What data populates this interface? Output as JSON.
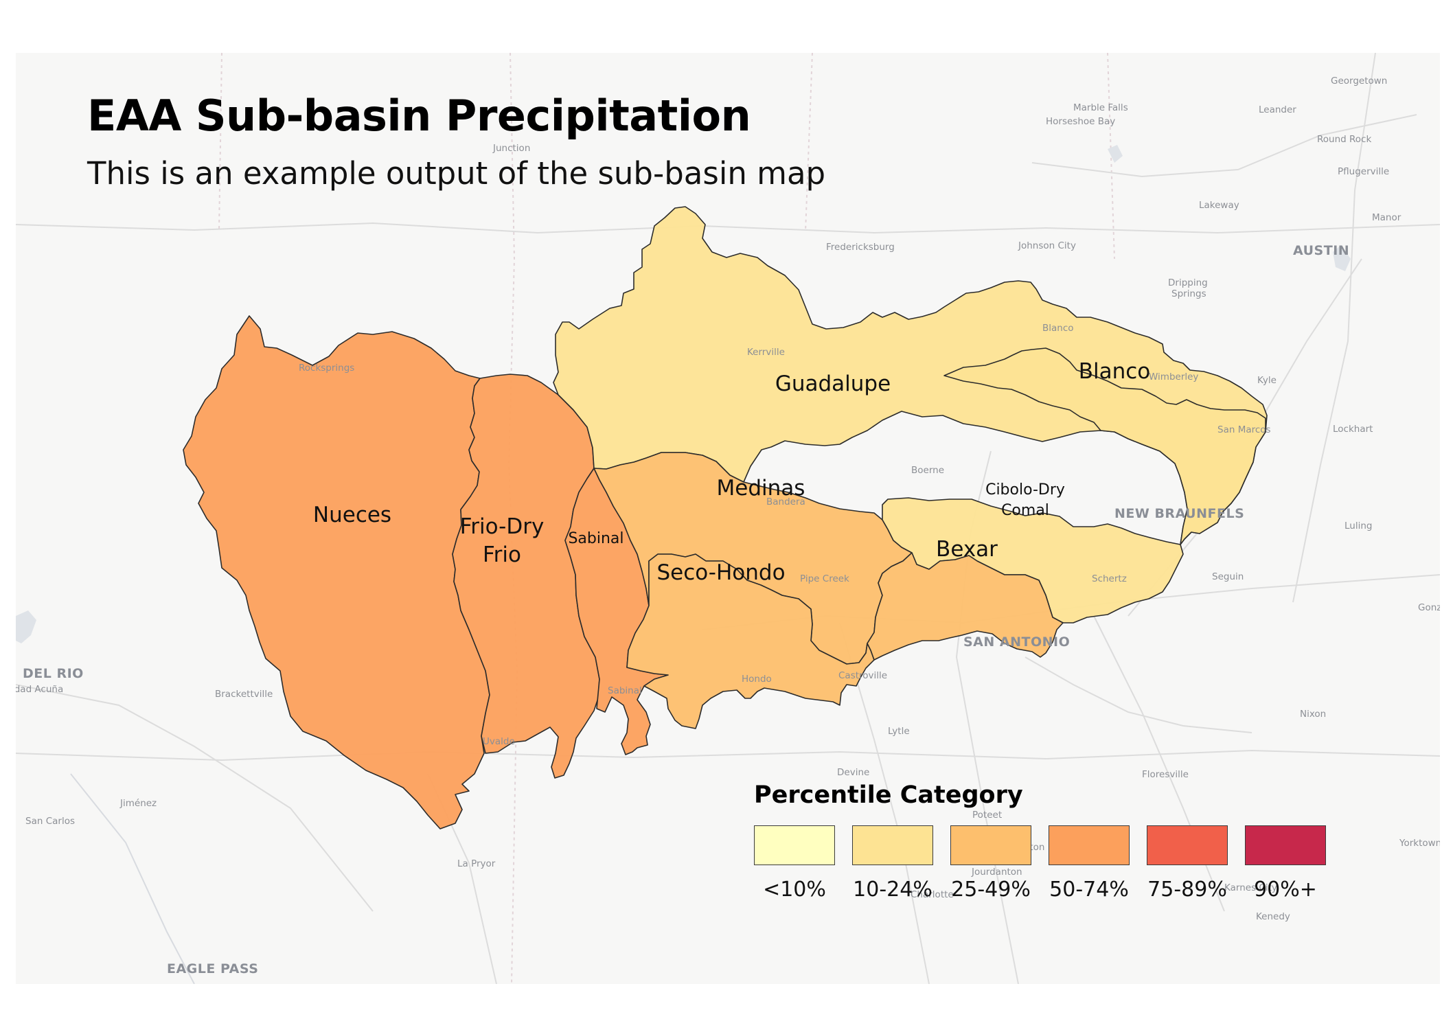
{
  "title": "EAA Sub-basin Precipitation",
  "subtitle": "This is an example output of the sub-basin map",
  "colors": {
    "lt10": "#ffffc0",
    "p10_24": "#fde393",
    "p25_49": "#fdbf6d",
    "p50_74": "#fca05c",
    "p75_89": "#f1604a",
    "p90": "#c7284b"
  },
  "legend": {
    "title": "Percentile Category",
    "items": [
      {
        "label": "<10%",
        "color": "#ffffc0"
      },
      {
        "label": "10-24%",
        "color": "#fde393"
      },
      {
        "label": "25-49%",
        "color": "#fdbf6d"
      },
      {
        "label": "50-74%",
        "color": "#fca05c"
      },
      {
        "label": "75-89%",
        "color": "#f1604a"
      },
      {
        "label": "90%+",
        "color": "#c7284b"
      }
    ]
  },
  "basins": {
    "nueces": {
      "name": "Nueces",
      "category": "50-74%"
    },
    "frio": {
      "line1": "Frio-Dry",
      "line2": "Frio",
      "category": "50-74%"
    },
    "sabinal": {
      "name": "Sabinal",
      "category": "50-74%"
    },
    "guadalupe": {
      "name": "Guadalupe",
      "category": "10-24%"
    },
    "blanco": {
      "name": "Blanco",
      "category": "10-24%"
    },
    "medinas": {
      "name": "Medinas",
      "category": "25-49%"
    },
    "seco": {
      "name": "Seco-Hondo",
      "category": "25-49%"
    },
    "cibolo": {
      "line1": "Cibolo-Dry",
      "line2": "Comal",
      "category": "10-24%"
    },
    "bexar": {
      "name": "Bexar",
      "category": "25-49%"
    }
  },
  "places": {
    "georgetown": "Georgetown",
    "marble_falls": "Marble Falls",
    "leander": "Leander",
    "horseshoe_bay": "Horseshoe Bay",
    "round_rock": "Round Rock",
    "junction": "Junction",
    "pflugerville": "Pflugerville",
    "lakeway": "Lakeway",
    "manor": "Manor",
    "fredericksburg": "Fredericksburg",
    "johnson_city": "Johnson City",
    "austin": "AUSTIN",
    "dripping_springs_1": "Dripping",
    "dripping_springs_2": "Springs",
    "rocksprings": "Rocksprings",
    "kerrville": "Kerrville",
    "blanco_town": "Blanco",
    "wimberley": "Wimberley",
    "kyle": "Kyle",
    "san_marcos": "San Marcos",
    "lockhart": "Lockhart",
    "boerne": "Boerne",
    "bandera": "Bandera",
    "new_braunfels": "NEW BRAUNFELS",
    "luling": "Luling",
    "schertz": "Schertz",
    "seguin": "Seguin",
    "san_antonio": "SAN ANTONIO",
    "del_rio": "DEL RIO",
    "ciudad_acuna": "Ciudad Acuña",
    "brackettville": "Brackettville",
    "sabinal_town": "Sabinal",
    "hondo": "Hondo",
    "castroville": "Castroville",
    "uvalde": "Uvalde",
    "lytle": "Lytle",
    "nixon": "Nixon",
    "devine": "Devine",
    "floresville": "Floresville",
    "jimenez": "Jiménez",
    "san_carlos": "San Carlos",
    "poteet": "Poteet",
    "pleasanton": "Pleasanton",
    "yorktown": "Yorktown",
    "la_pryor": "La Pryor",
    "jourdanton": "Jourdanton",
    "charlotte": "Charlotte",
    "karnes_city": "Karnes City",
    "kenedy": "Kenedy",
    "eagle_pass": "EAGLE PASS",
    "gonzales": "Gonzales",
    "pipe_creek": "Pipe Creek"
  }
}
